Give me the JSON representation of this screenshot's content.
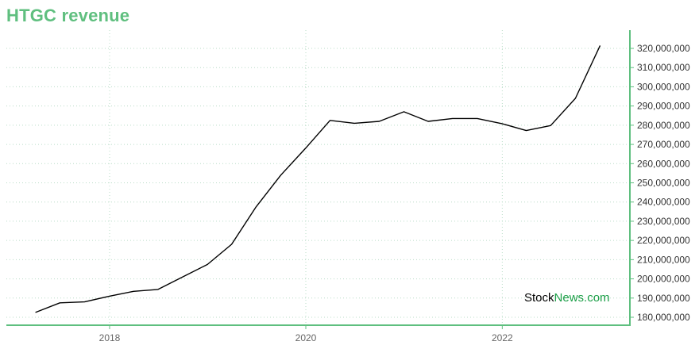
{
  "title": "HTGC revenue",
  "watermark": {
    "part1": "Stock",
    "part2": "News",
    "part3": ".com",
    "color1": "#000000",
    "color2": "#1a9e46",
    "color3": "#1a9e46"
  },
  "colors": {
    "title": "#5fbf7f",
    "axis": "#5fbf7f",
    "grid": "#b9dcc7",
    "line": "#000000"
  },
  "chart_data": {
    "type": "line",
    "title": "HTGC revenue",
    "xlabel": "",
    "ylabel": "",
    "x_tick_labels": [
      "2018",
      "2020",
      "2022"
    ],
    "y_tick_labels": [
      "180,000,000",
      "190,000,000",
      "200,000,000",
      "210,000,000",
      "220,000,000",
      "230,000,000",
      "240,000,000",
      "250,000,000",
      "260,000,000",
      "270,000,000",
      "280,000,000",
      "290,000,000",
      "300,000,000",
      "310,000,000",
      "320,000,000"
    ],
    "ylim": [
      177000000,
      327000000
    ],
    "grid": true,
    "series": [
      {
        "x": [
          "2017-03-31",
          "2017-06-30",
          "2017-09-30",
          "2017-12-31",
          "2018-03-31",
          "2018-06-30",
          "2018-09-30",
          "2018-12-31",
          "2019-03-31",
          "2019-06-30",
          "2019-09-30",
          "2019-12-31",
          "2020-03-31",
          "2020-06-30",
          "2020-09-30",
          "2020-12-31",
          "2021-03-31",
          "2021-06-30",
          "2021-09-30",
          "2021-12-31",
          "2022-03-31",
          "2022-06-30",
          "2022-09-30",
          "2022-12-31"
        ],
        "values": [
          182500000,
          187500000,
          188000000,
          191000000,
          193500000,
          194500000,
          201000000,
          207500000,
          218000000,
          237500000,
          254000000,
          268000000,
          282500000,
          281000000,
          282000000,
          287000000,
          282000000,
          283500000,
          283500000,
          280800000,
          277200000,
          279800000,
          294000000,
          321500000
        ]
      }
    ]
  }
}
